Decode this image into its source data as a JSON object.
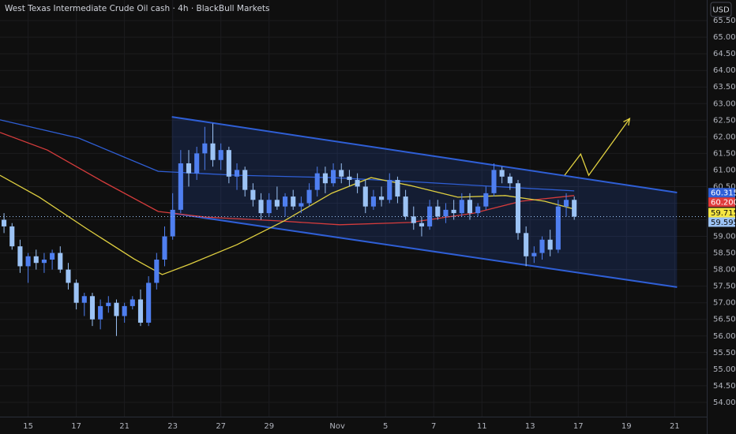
{
  "chart_data": {
    "type": "candlestick",
    "title": "West Texas Intermediate Crude Oil cash · 4h · BlackBull Markets",
    "currency": "USD",
    "up_color": "#4f7ff0",
    "down_color": "#9cc3f5",
    "grid": true,
    "xlim": [
      -0.5,
      87.5
    ],
    "xticks": [
      {
        "value": 3,
        "label": "15"
      },
      {
        "value": 9,
        "label": "17"
      },
      {
        "value": 15,
        "label": "21"
      },
      {
        "value": 21,
        "label": "23"
      },
      {
        "value": 27,
        "label": "27"
      },
      {
        "value": 33,
        "label": "29"
      },
      {
        "value": 41.5,
        "label": "Nov"
      },
      {
        "value": 47.5,
        "label": "5"
      },
      {
        "value": 53.5,
        "label": "7"
      },
      {
        "value": 59.5,
        "label": "11"
      },
      {
        "value": 65.5,
        "label": "13"
      },
      {
        "value": 71.5,
        "label": "17"
      },
      {
        "value": 77.5,
        "label": "19"
      },
      {
        "value": 83.5,
        "label": "21"
      }
    ],
    "ylim": [
      53.57,
      66.12
    ],
    "yticks": [
      {
        "value": 54,
        "label": "54.000"
      },
      {
        "value": 54.5,
        "label": "54.500"
      },
      {
        "value": 55,
        "label": "55.000"
      },
      {
        "value": 55.5,
        "label": "55.500"
      },
      {
        "value": 56,
        "label": "56.000"
      },
      {
        "value": 56.5,
        "label": "56.500"
      },
      {
        "value": 57,
        "label": "57.000"
      },
      {
        "value": 57.5,
        "label": "57.500"
      },
      {
        "value": 58,
        "label": "58.000"
      },
      {
        "value": 58.5,
        "label": "58.500"
      },
      {
        "value": 59,
        "label": "59.000"
      },
      {
        "value": 59.5,
        "label": "59.500"
      },
      {
        "value": 60,
        "label": "60.000"
      },
      {
        "value": 60.5,
        "label": "60.500"
      },
      {
        "value": 61,
        "label": "61.000"
      },
      {
        "value": 61.5,
        "label": "61.500"
      },
      {
        "value": 62,
        "label": "62.000"
      },
      {
        "value": 62.5,
        "label": "62.500"
      },
      {
        "value": 63,
        "label": "63.000"
      },
      {
        "value": 63.5,
        "label": "63.500"
      },
      {
        "value": 64,
        "label": "64.000"
      },
      {
        "value": 64.5,
        "label": "64.500"
      },
      {
        "value": 65,
        "label": "65.000"
      },
      {
        "value": 65.5,
        "label": "65.500"
      }
    ],
    "open": [
      59.5,
      59.3,
      58.7,
      58.1,
      58.4,
      58.2,
      58.3,
      58.5,
      58.0,
      57.6,
      57.0,
      57.2,
      56.5,
      56.9,
      57.0,
      56.6,
      56.9,
      57.1,
      56.4,
      57.6,
      58.3,
      59.0,
      59.8,
      61.2,
      60.9,
      61.5,
      61.8,
      61.3,
      61.6,
      60.8,
      61.0,
      60.4,
      60.1,
      59.7,
      60.1,
      59.9,
      60.2,
      59.9,
      60.0,
      60.4,
      60.9,
      60.6,
      61.0,
      60.8,
      60.7,
      60.5,
      59.9,
      60.2,
      60.1,
      60.7,
      60.2,
      59.6,
      59.4,
      59.3,
      59.9,
      59.6,
      59.8,
      59.7,
      60.1,
      59.7,
      59.9,
      60.3,
      61.0,
      60.8,
      60.6,
      59.1,
      58.4,
      58.5,
      58.9,
      58.6,
      59.9,
      60.1
    ],
    "high": [
      59.7,
      59.4,
      58.9,
      58.5,
      58.6,
      58.5,
      58.6,
      58.7,
      58.2,
      57.7,
      57.3,
      57.3,
      57.1,
      57.2,
      57.1,
      57.0,
      57.2,
      57.4,
      57.8,
      58.5,
      59.3,
      60.3,
      61.6,
      61.6,
      61.7,
      62.3,
      62.4,
      61.8,
      61.7,
      61.2,
      61.1,
      60.6,
      60.3,
      60.3,
      60.5,
      60.3,
      60.4,
      60.2,
      60.6,
      61.1,
      61.1,
      61.2,
      61.2,
      61.0,
      60.9,
      60.7,
      60.4,
      60.5,
      60.9,
      60.8,
      60.4,
      59.9,
      59.6,
      60.1,
      60.1,
      60.0,
      60.1,
      60.3,
      60.3,
      60.0,
      60.5,
      61.2,
      61.1,
      60.9,
      60.7,
      59.3,
      58.7,
      59.0,
      59.2,
      60.1,
      60.3,
      60.2
    ],
    "low": [
      59.1,
      58.6,
      57.9,
      57.6,
      58.0,
      57.9,
      58.0,
      57.9,
      57.4,
      56.8,
      56.6,
      56.3,
      56.2,
      56.7,
      56.0,
      56.4,
      56.8,
      56.3,
      56.3,
      57.4,
      58.1,
      58.9,
      59.7,
      60.5,
      60.7,
      61.0,
      61.1,
      61.0,
      60.6,
      60.4,
      60.2,
      59.9,
      59.5,
      59.6,
      59.8,
      59.6,
      59.8,
      59.7,
      59.9,
      60.2,
      60.3,
      60.5,
      60.6,
      60.5,
      60.3,
      59.7,
      59.8,
      59.9,
      60.0,
      60.0,
      59.5,
      59.2,
      59.0,
      59.2,
      59.5,
      59.4,
      59.5,
      59.6,
      59.5,
      59.6,
      59.8,
      60.2,
      60.6,
      60.4,
      58.9,
      58.1,
      58.2,
      58.3,
      58.4,
      58.5,
      59.6,
      59.5
    ],
    "close": [
      59.3,
      58.7,
      58.1,
      58.4,
      58.2,
      58.3,
      58.5,
      58.0,
      57.6,
      57.0,
      57.2,
      56.5,
      56.9,
      57.0,
      56.6,
      56.9,
      57.1,
      56.4,
      57.6,
      58.3,
      59.0,
      59.8,
      61.2,
      60.9,
      61.5,
      61.8,
      61.3,
      61.6,
      60.8,
      61.0,
      60.4,
      60.1,
      59.7,
      60.1,
      59.9,
      60.2,
      59.9,
      60.0,
      60.4,
      60.9,
      60.6,
      61.0,
      60.8,
      60.7,
      60.5,
      59.9,
      60.2,
      60.1,
      60.7,
      60.2,
      59.6,
      59.4,
      59.3,
      59.9,
      59.6,
      59.8,
      59.7,
      60.1,
      59.7,
      59.9,
      60.3,
      61.0,
      60.8,
      60.6,
      59.1,
      58.4,
      58.5,
      58.9,
      58.6,
      59.9,
      60.1,
      59.595
    ],
    "series": [
      {
        "color": "#2f5fd6",
        "x": [
          -0.5,
          9.3,
          19.2,
          29,
          40.8,
          50.6,
          60.5,
          71
        ],
        "values": [
          62.51,
          61.96,
          60.96,
          60.84,
          60.77,
          60.65,
          60.51,
          60.37
        ]
      },
      {
        "color": "#d63c3c",
        "x": [
          -0.5,
          5.4,
          12.3,
          19.2,
          25.1,
          33.9,
          41.8,
          50.6,
          58.5,
          64.4,
          71
        ],
        "values": [
          62.13,
          61.6,
          60.65,
          59.75,
          59.58,
          59.47,
          59.35,
          59.42,
          59.7,
          60.06,
          60.23
        ]
      },
      {
        "color": "#e0d040",
        "x": [
          -0.5,
          4.4,
          10.3,
          16.2,
          19.7,
          23.1,
          29,
          34.9,
          40.8,
          45.7,
          50.6,
          56.5,
          62.4,
          67.3,
          71
        ],
        "values": [
          60.84,
          60.18,
          59.23,
          58.32,
          57.85,
          58.16,
          58.75,
          59.47,
          60.3,
          60.77,
          60.53,
          60.18,
          60.23,
          60.06,
          59.82
        ]
      }
    ],
    "channel": {
      "x": [
        20.9,
        83.8
      ],
      "upper": [
        62.6,
        60.32
      ],
      "lower": [
        59.7,
        57.47
      ],
      "color": "#2f5fd6"
    },
    "arrow": {
      "x": [
        69.8,
        71.8,
        72.8,
        77.9
      ],
      "values": [
        60.84,
        61.48,
        60.84,
        62.55
      ],
      "color": "#e0d040"
    },
    "price_labels": [
      {
        "value": 60.315,
        "label": "60.315",
        "color": "#2f5fd6"
      },
      {
        "value": 60.2,
        "label": "60.200",
        "color": "#e03c3c"
      },
      {
        "value": 59.715,
        "label": "59.715",
        "color": "#f5e642"
      },
      {
        "value": 59.595,
        "label": "59.595",
        "color": "#9cc3f5"
      }
    ]
  }
}
